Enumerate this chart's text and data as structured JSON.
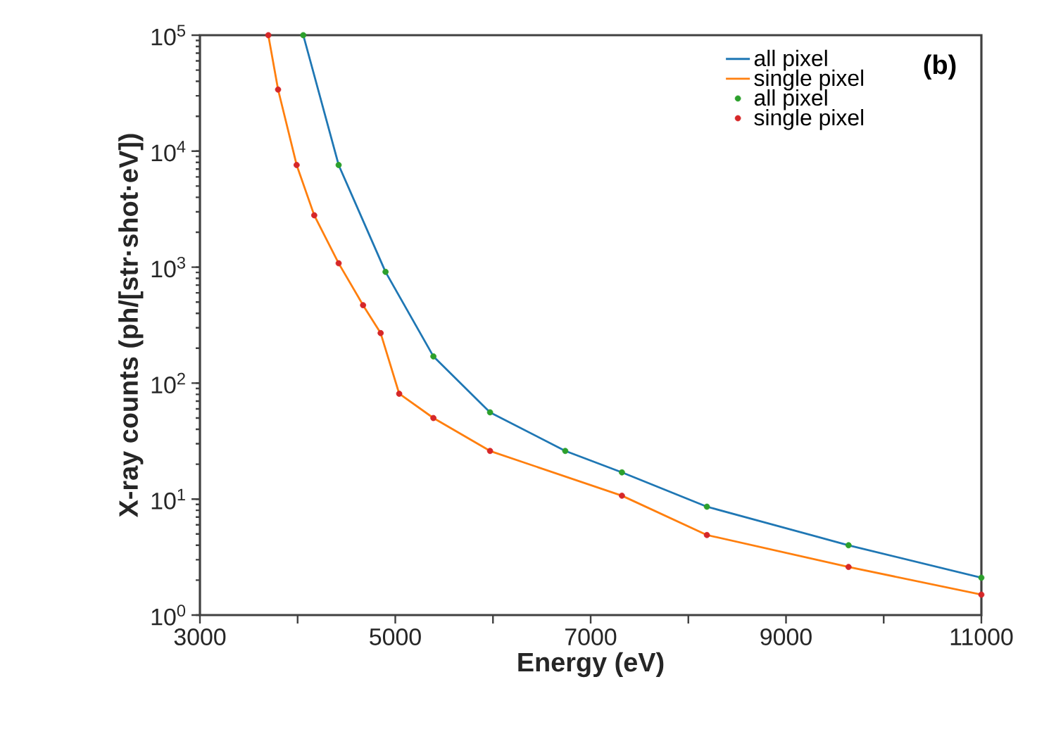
{
  "chart_data": {
    "type": "line",
    "xlabel": "Energy (eV)",
    "ylabel": "X-ray counts (ph/[str·shot·eV])",
    "annotations": [
      "(b)"
    ],
    "log": "y",
    "legend": "top right",
    "xlim": [
      3000,
      11000
    ],
    "ylim": [
      1,
      100000
    ],
    "xticks": [
      3000,
      {
        "value": 4000,
        "label": null
      },
      5000,
      {
        "value": 6000,
        "label": null
      },
      7000,
      {
        "value": 8000,
        "label": null
      },
      9000,
      {
        "value": 10000,
        "label": null
      },
      11000
    ],
    "yticks": [
      {
        "value": 1,
        "label": "10$^{0}$"
      },
      {
        "value": 10,
        "label": "10$^{1}$"
      },
      {
        "value": 100,
        "label": "10$^{2}$"
      },
      {
        "value": 1000,
        "label": "10$^{3}$"
      },
      {
        "value": 10000,
        "label": "10$^{4}$"
      },
      {
        "value": 100000,
        "label": "10$^{5}$"
      }
    ],
    "series": [
      {
        "name": "all pixel",
        "marker": "none",
        "color": "#1f77b4",
        "x": [
          4058,
          4420,
          4900,
          5390,
          5970,
          6740,
          7320,
          8190,
          9640,
          11000
        ],
        "values": [
          100000,
          7600,
          910,
          170,
          56,
          26,
          17,
          8.6,
          4.0,
          2.1
        ]
      },
      {
        "name": "single pixel",
        "marker": "none",
        "color": "#ff7f0e",
        "x": [
          3700,
          3800,
          3990,
          4170,
          4420,
          4670,
          4850,
          5040,
          5390,
          5970,
          7320,
          8190,
          9640,
          11000
        ],
        "values": [
          100000,
          34000,
          7600,
          2800,
          1080,
          470,
          270,
          81,
          50,
          26,
          10.7,
          4.9,
          2.6,
          1.5
        ]
      },
      {
        "name": "all pixel",
        "type": "scatter",
        "marker": "circle",
        "color": "#2ca02c",
        "x": [
          4058,
          4420,
          4900,
          5390,
          5970,
          6740,
          7320,
          8190,
          9640,
          11000
        ],
        "values": [
          100000,
          7600,
          910,
          170,
          56,
          26,
          17,
          8.6,
          4.0,
          2.1
        ]
      },
      {
        "name": "single pixel",
        "type": "scatter",
        "marker": "circle",
        "color": "#d62728",
        "x": [
          3700,
          3800,
          3990,
          4170,
          4420,
          4670,
          4850,
          5040,
          5390,
          5970,
          7320,
          8190,
          9640,
          11000
        ],
        "values": [
          100000,
          34000,
          7600,
          2800,
          1080,
          470,
          270,
          81,
          50,
          26,
          10.7,
          4.9,
          2.6,
          1.5
        ]
      }
    ]
  }
}
